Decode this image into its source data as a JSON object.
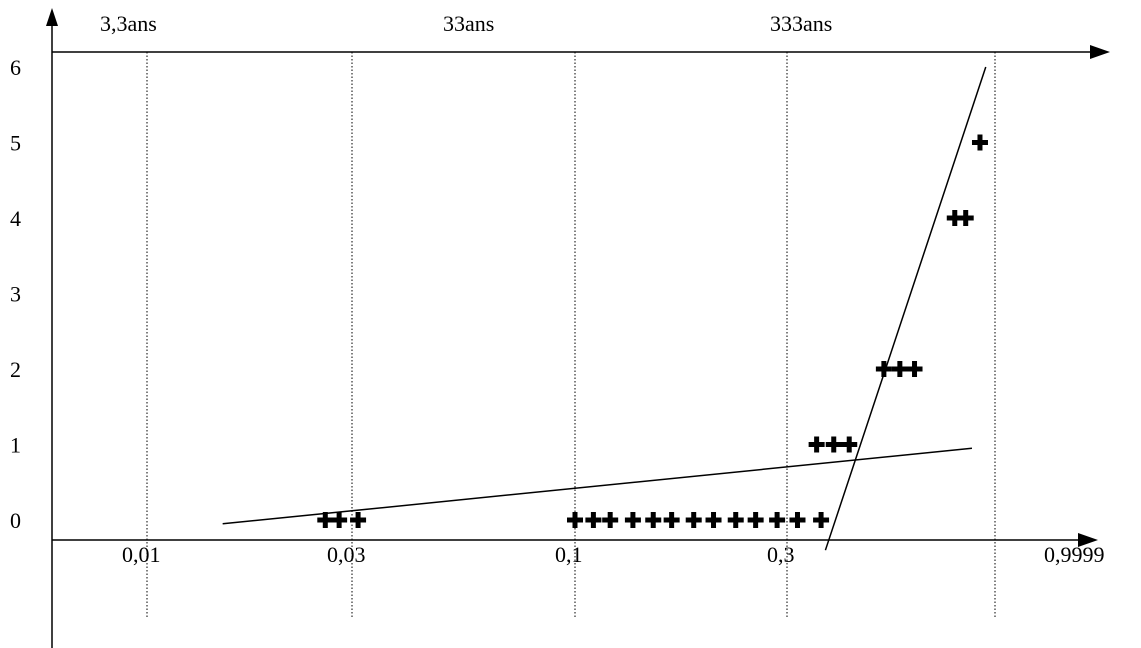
{
  "chart_data": {
    "type": "scatter",
    "y_ticks": [
      "0",
      "1",
      "2",
      "3",
      "4",
      "5",
      "6"
    ],
    "ylim": [
      0,
      6
    ],
    "x_tick_labels": [
      "0,01",
      "0,03",
      "0,1",
      "0,3",
      "0,9999"
    ],
    "return_period_labels": [
      "3,3ans",
      "33ans",
      "333ans"
    ],
    "grid_vertical": true,
    "grid_style": "dotted",
    "marker": "plus",
    "points": [
      {
        "x": 0.026,
        "y": 0
      },
      {
        "x": 0.028,
        "y": 0
      },
      {
        "x": 0.031,
        "y": 0
      },
      {
        "x": 0.1,
        "y": 0
      },
      {
        "x": 0.11,
        "y": 0
      },
      {
        "x": 0.12,
        "y": 0
      },
      {
        "x": 0.135,
        "y": 0
      },
      {
        "x": 0.15,
        "y": 0
      },
      {
        "x": 0.165,
        "y": 0
      },
      {
        "x": 0.185,
        "y": 0
      },
      {
        "x": 0.205,
        "y": 0
      },
      {
        "x": 0.23,
        "y": 0
      },
      {
        "x": 0.255,
        "y": 0
      },
      {
        "x": 0.285,
        "y": 0
      },
      {
        "x": 0.32,
        "y": 0
      },
      {
        "x": 0.37,
        "y": 0
      },
      {
        "x": 0.36,
        "y": 1
      },
      {
        "x": 0.4,
        "y": 1
      },
      {
        "x": 0.44,
        "y": 1
      },
      {
        "x": 0.54,
        "y": 2
      },
      {
        "x": 0.59,
        "y": 2
      },
      {
        "x": 0.64,
        "y": 2
      },
      {
        "x": 0.8,
        "y": 4
      },
      {
        "x": 0.85,
        "y": 4
      },
      {
        "x": 0.92,
        "y": 5
      }
    ],
    "fit_lines": [
      {
        "x": [
          0.015,
          0.88
        ],
        "y": [
          -0.05,
          0.95
        ]
      },
      {
        "x": [
          0.38,
          0.95
        ],
        "y": [
          -0.4,
          6.0
        ]
      }
    ]
  }
}
